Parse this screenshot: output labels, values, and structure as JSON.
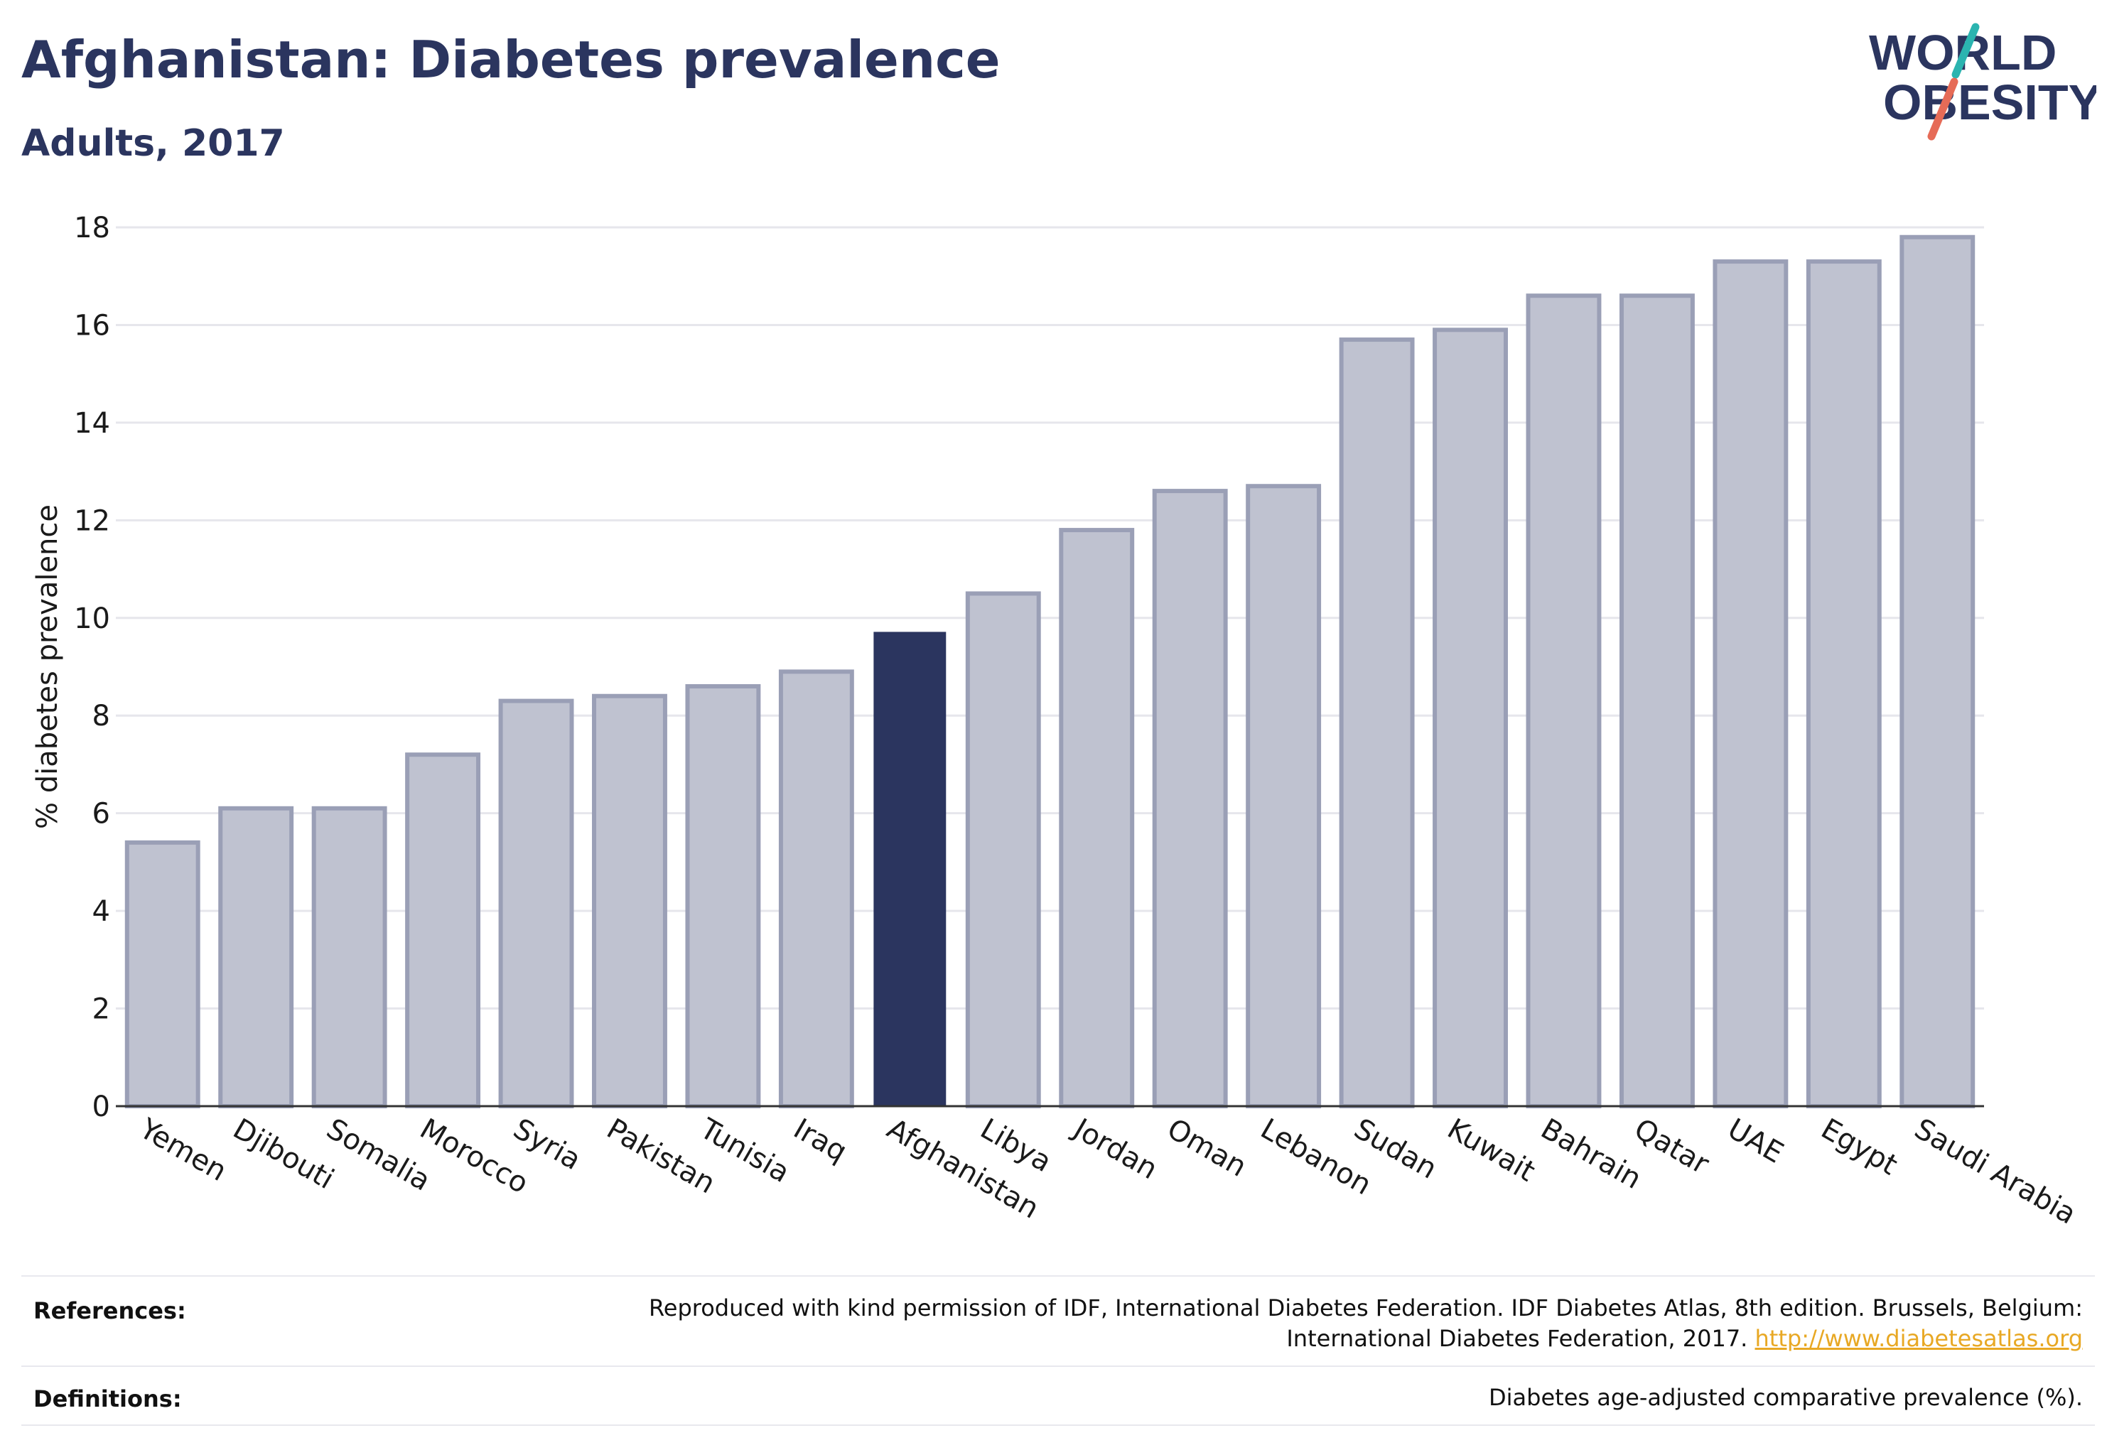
{
  "header": {
    "title": "Afghanistan: Diabetes prevalence",
    "subtitle": "Adults, 2017"
  },
  "logo": {
    "line1": "WORLD",
    "line2": "OBESITY"
  },
  "colors": {
    "highlight_bar": "#2b355f",
    "other_bar_fill": "#bfc2d0",
    "other_bar_stroke": "#9a9fb6",
    "gridline": "#e6e6ec",
    "axis_text": "#1a1a1a",
    "link": "#e8a824",
    "logo_teal": "#2bb4b0",
    "logo_coral": "#e66b57"
  },
  "chart_data": {
    "type": "bar",
    "title": "Afghanistan: Diabetes prevalence",
    "subtitle": "Adults, 2017",
    "ylabel": "% diabetes prevalence",
    "xlabel": "",
    "ylim": [
      0,
      18
    ],
    "yticks": [
      0,
      2,
      4,
      6,
      8,
      10,
      12,
      14,
      16,
      18
    ],
    "grid": true,
    "highlight": "Afghanistan",
    "categories": [
      "Yemen",
      "Djibouti",
      "Somalia",
      "Morocco",
      "Syria",
      "Pakistan",
      "Tunisia",
      "Iraq",
      "Afghanistan",
      "Libya",
      "Jordan",
      "Oman",
      "Lebanon",
      "Sudan",
      "Kuwait",
      "Bahrain",
      "Qatar",
      "UAE",
      "Egypt",
      "Saudi Arabia"
    ],
    "values": [
      5.4,
      6.1,
      6.1,
      7.2,
      8.3,
      8.4,
      8.6,
      8.9,
      9.7,
      10.5,
      11.8,
      12.6,
      12.7,
      15.7,
      15.9,
      16.6,
      16.6,
      17.3,
      17.3,
      17.8
    ]
  },
  "footer": {
    "references_label": "References:",
    "references_text_line1": "Reproduced with kind permission of IDF, International Diabetes Federation. IDF Diabetes Atlas, 8th edition. Brussels, Belgium:",
    "references_text_line2": "International Diabetes Federation, 2017.",
    "references_link": "http://www.diabetesatlas.org",
    "definitions_label": "Definitions:",
    "definitions_text": "Diabetes age-adjusted comparative prevalence (%)."
  }
}
